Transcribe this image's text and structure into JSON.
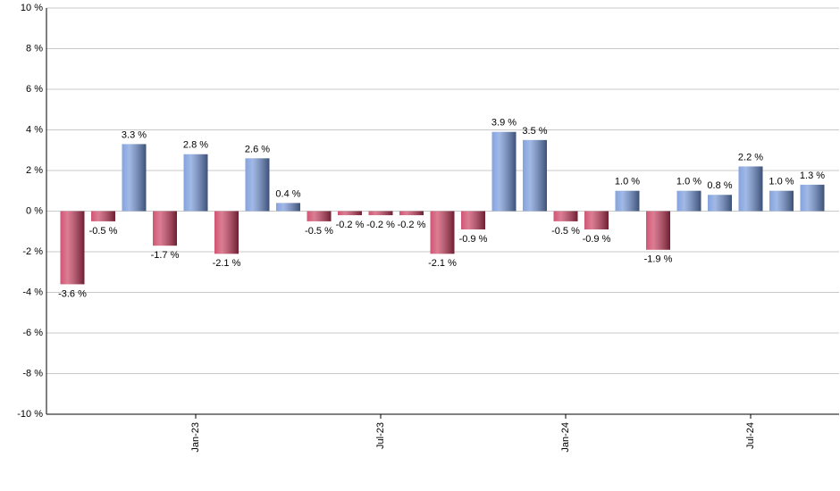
{
  "chart_data": {
    "type": "bar",
    "categories": [
      null,
      null,
      null,
      null,
      "Jan-23",
      null,
      null,
      null,
      null,
      null,
      "Jul-23",
      null,
      null,
      null,
      null,
      null,
      "Jan-24",
      null,
      null,
      null,
      null,
      null,
      "Jul-24",
      null,
      null
    ],
    "values": [
      -3.6,
      -0.5,
      3.3,
      -1.7,
      2.8,
      -2.1,
      2.6,
      0.4,
      -0.5,
      -0.2,
      -0.2,
      -0.2,
      -2.1,
      -0.9,
      3.9,
      3.5,
      -0.5,
      -0.9,
      1.0,
      -1.9,
      1.0,
      0.8,
      2.2,
      1.0,
      1.3
    ],
    "value_labels": [
      "-3.6 %",
      "-0.5 %",
      "3.3 %",
      "-1.7 %",
      "2.8 %",
      "-2.1 %",
      "2.6 %",
      "0.4 %",
      "-0.5 %",
      "-0.2 %",
      "-0.2 %",
      "-0.2 %",
      "-2.1 %",
      "-0.9 %",
      "3.9 %",
      "3.5 %",
      "-0.5 %",
      "-0.9 %",
      "1.0 %",
      "-1.9 %",
      "1.0 %",
      "0.8 %",
      "2.2 %",
      "1.0 %",
      "1.3 %"
    ],
    "positive_color": "#6f93d8",
    "negative_color": "#c8385a",
    "ylim": [
      -10,
      10
    ],
    "yticks": [
      {
        "value": -10,
        "label": "-10 %"
      },
      {
        "value": -8,
        "label": "-8 %"
      },
      {
        "value": -6,
        "label": "-6 %"
      },
      {
        "value": -4,
        "label": "-4 %"
      },
      {
        "value": -2,
        "label": "-2 %"
      },
      {
        "value": 0,
        "label": "0 %"
      },
      {
        "value": 2,
        "label": "2 %"
      },
      {
        "value": 4,
        "label": "4 %"
      },
      {
        "value": 6,
        "label": "6 %"
      },
      {
        "value": 8,
        "label": "8 %"
      },
      {
        "value": 10,
        "label": "10 %"
      }
    ],
    "grid": true
  }
}
